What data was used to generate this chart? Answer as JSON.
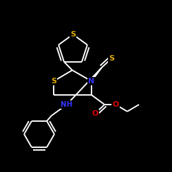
{
  "background_color": "#000000",
  "bond_color": "#ffffff",
  "S_color": "#ddaa00",
  "N_color": "#3333ff",
  "O_color": "#dd0000",
  "fig_size": [
    2.5,
    2.5
  ],
  "dpi": 100,
  "xlim": [
    0,
    250
  ],
  "ylim": [
    0,
    250
  ]
}
